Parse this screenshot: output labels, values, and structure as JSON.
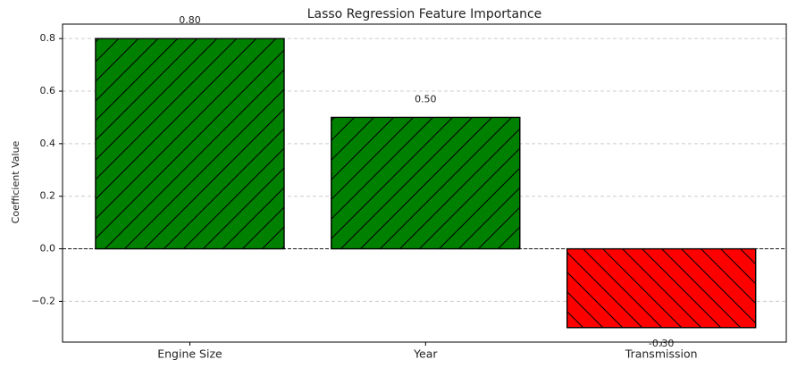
{
  "chart_data": {
    "type": "bar",
    "title": "Lasso Regression Feature Importance",
    "y_label": "Coefficient Value",
    "categories": [
      "Engine Size",
      "Year",
      "Transmission"
    ],
    "values": [
      0.8,
      0.5,
      -0.3
    ],
    "value_labels": [
      "0.80",
      "0.50",
      "-0.30"
    ],
    "colors": [
      "#008000",
      "#008000",
      "#ff0000"
    ],
    "hatches": [
      "/",
      "/",
      "\\"
    ],
    "ylim": [
      -0.355,
      0.855
    ],
    "yticks": [
      {
        "value": -0.2,
        "label": "−0.2"
      },
      {
        "value": 0.0,
        "label": "0.0"
      },
      {
        "value": 0.2,
        "label": "0.2"
      },
      {
        "value": 0.4,
        "label": "0.4"
      },
      {
        "value": 0.6,
        "label": "0.6"
      },
      {
        "value": 0.8,
        "label": "0.8"
      }
    ],
    "grid": true
  }
}
